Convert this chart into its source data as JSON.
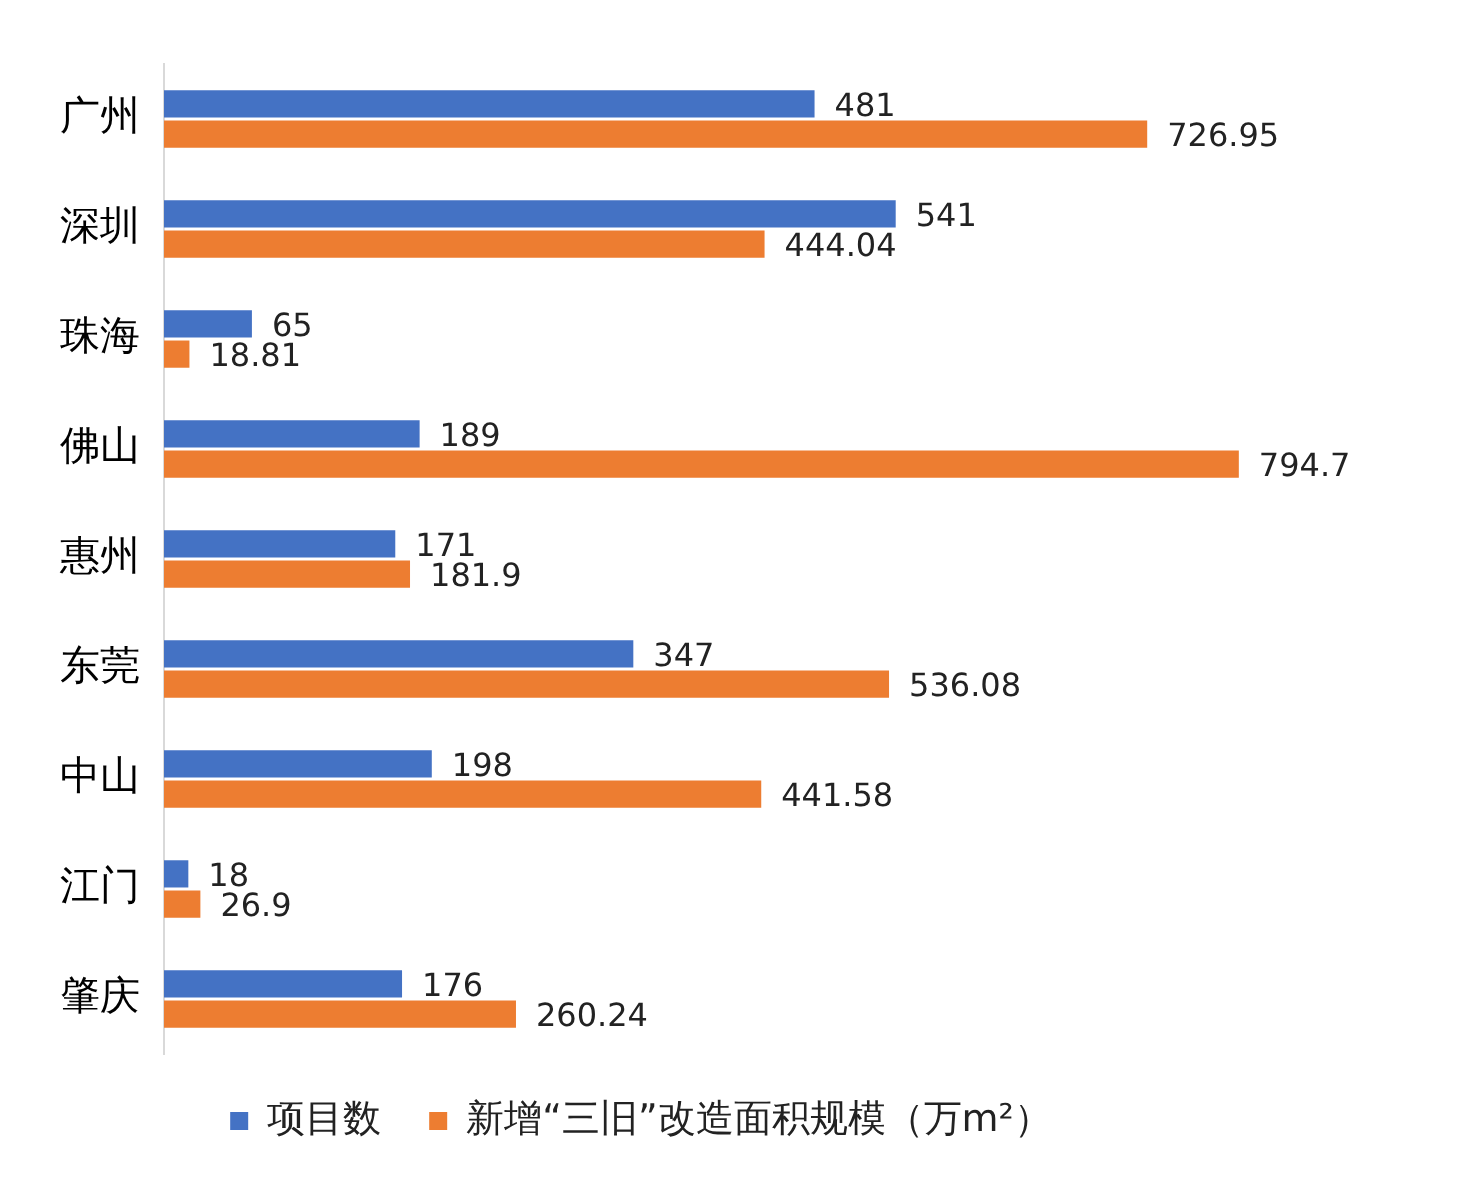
{
  "chart_data": {
    "type": "bar",
    "orientation": "horizontal",
    "categories": [
      "广州",
      "深圳",
      "珠海",
      "佛山",
      "惠州",
      "东莞",
      "中山",
      "江门",
      "肇庆"
    ],
    "series": [
      {
        "name": "项目数",
        "color": "#4472c4",
        "values": [
          481,
          541,
          65,
          189,
          171,
          347,
          198,
          18,
          176
        ]
      },
      {
        "name": "新增“三旧”改造面积规模（万m²）",
        "color": "#ed7d31",
        "values": [
          726.95,
          444.04,
          18.81,
          794.7,
          181.9,
          536.08,
          441.58,
          26.9,
          260.24
        ]
      }
    ],
    "data_labels": true,
    "legend": "bottom"
  }
}
